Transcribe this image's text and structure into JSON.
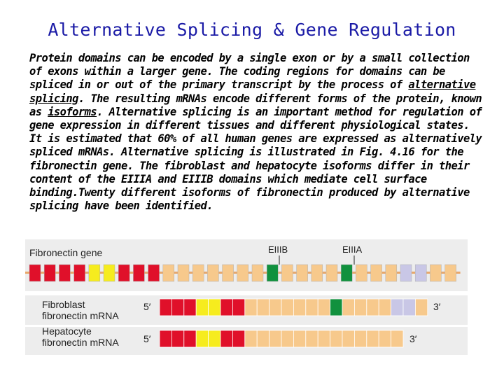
{
  "title": "Alternative Splicing & Gene Regulation",
  "paragraph": {
    "p1": "Protein domains can be encoded by a single exon or by a small collection of exons within a larger gene. The coding regions for domains can be spliced in or out of the primary transcript by the process of ",
    "term1": "alternative splicing",
    "p2": ". The resulting mRNAs encode different forms of the protein, known as ",
    "term2": "isoforms",
    "p3": ". Alternative splicing is an important method for regulation of gene expression in different tissues and different physiological states. It is estimated that 60% of all human genes are expressed as alternatively spliced mRNAs. Alternative splicing is illustrated in Fig. 4.16 for the fibronectin gene. The fibroblast and hepatocyte isoforms differ in their content of the EIIIA and EIIIB domains which mediate cell surface binding.Twenty different isoforms of fibronectin produced by alternative splicing have been identified."
  },
  "diagram": {
    "gene_label": "Fibronectin gene",
    "eiiib_label": "EIIIB",
    "eiiia_label": "EIIIA",
    "fibroblast_label_1": "Fibroblast",
    "fibroblast_label_2": "fibronectin mRNA",
    "hepatocyte_label_1": "Hepatocyte",
    "hepatocyte_label_2": "fibronectin mRNA",
    "five_prime": "5′",
    "three_prime": "3′",
    "colors": {
      "red": "#e0102a",
      "yellow": "#f6ec1e",
      "tan": "#f7c98c",
      "green": "#11913e",
      "lavender": "#c9c7e6",
      "intron": "#e8a76a",
      "band": "#ededed"
    },
    "gene_exons": [
      "red",
      "red",
      "red",
      "red",
      "yellow",
      "yellow",
      "red",
      "red",
      "red",
      "tan",
      "tan",
      "tan",
      "tan",
      "tan",
      "tan",
      "tan",
      "green",
      "tan",
      "tan",
      "tan",
      "tan",
      "green",
      "tan",
      "tan",
      "tan",
      "lavender",
      "lavender",
      "tan",
      "tan"
    ],
    "fibroblast_exons": [
      "red",
      "red",
      "red",
      "yellow",
      "yellow",
      "red",
      "red",
      "tan",
      "tan",
      "tan",
      "tan",
      "tan",
      "tan",
      "tan",
      "green",
      "tan",
      "tan",
      "tan",
      "tan",
      "lavender",
      "lavender",
      "tan"
    ],
    "hepatocyte_exons": [
      "red",
      "red",
      "red",
      "yellow",
      "yellow",
      "red",
      "red",
      "tan",
      "tan",
      "tan",
      "tan",
      "tan",
      "tan",
      "tan",
      "tan",
      "tan",
      "tan",
      "tan",
      "tan",
      "tan"
    ]
  }
}
